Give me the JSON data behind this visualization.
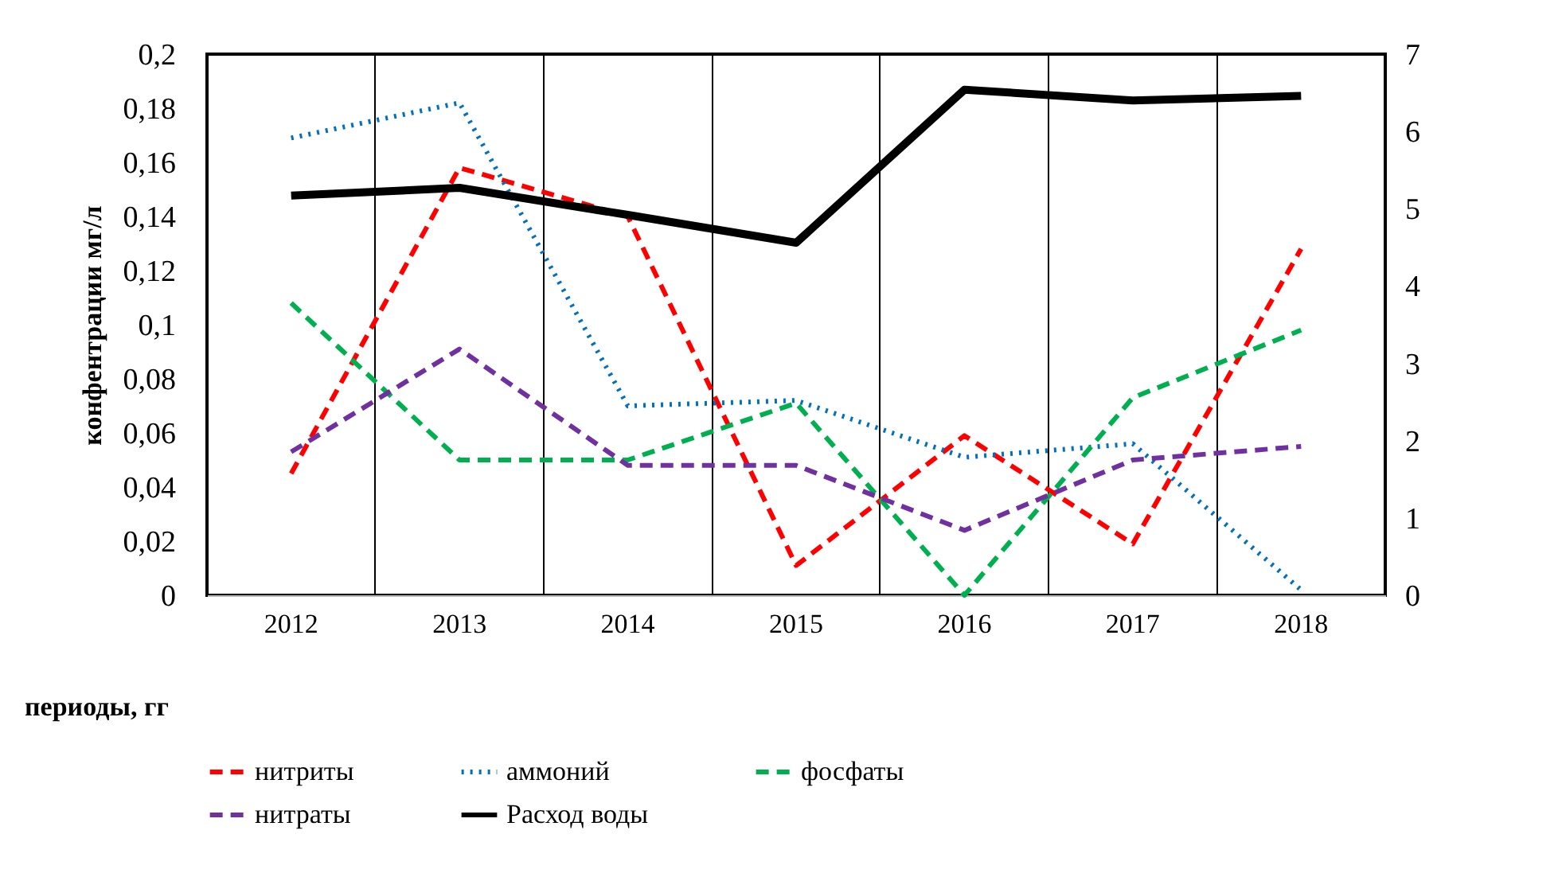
{
  "chart_data": {
    "type": "line",
    "xlabel": "периоды, гг",
    "ylabel": "конфентрации мг/л",
    "categories": [
      "2012",
      "2013",
      "2014",
      "2015",
      "2016",
      "2017",
      "2018"
    ],
    "series": [
      {
        "name": "нитриты",
        "color": "#ff0000",
        "line_style": "dashed",
        "values": [
          0.045,
          0.158,
          0.14,
          0.011,
          0.059,
          0.019,
          0.128
        ]
      },
      {
        "name": "аммоний",
        "color": "#0070c0",
        "line_style": "dotted",
        "values": [
          0.169,
          0.182,
          0.07,
          0.072,
          0.051,
          0.056,
          0.002
        ]
      },
      {
        "name": "фосфаты",
        "color": "#00b050",
        "line_style": "dashed",
        "values": [
          0.108,
          0.05,
          0.05,
          0.071,
          0.0,
          0.073,
          0.098
        ]
      },
      {
        "name": "нитраты",
        "color": "#7030a0",
        "line_style": "dashed",
        "values": [
          0.053,
          0.091,
          0.048,
          0.048,
          0.024,
          0.05,
          0.055
        ]
      },
      {
        "name": "Расход воды",
        "color": "#000000",
        "line_style": "solid",
        "axis": "y2",
        "values": [
          5.17,
          5.27,
          4.92,
          4.56,
          6.54,
          6.4,
          6.46
        ]
      }
    ],
    "ylim": [
      0,
      0.2
    ],
    "yticks": [
      {
        "value": 0,
        "label": "0"
      },
      {
        "value": 0.02,
        "label": "0,02"
      },
      {
        "value": 0.04,
        "label": "0,04"
      },
      {
        "value": 0.06,
        "label": "0,06"
      },
      {
        "value": 0.08,
        "label": "0,08"
      },
      {
        "value": 0.1,
        "label": "0,1"
      },
      {
        "value": 0.12,
        "label": "0,12"
      },
      {
        "value": 0.14,
        "label": "0,14"
      },
      {
        "value": 0.16,
        "label": "0,16"
      },
      {
        "value": 0.18,
        "label": "0,18"
      },
      {
        "value": 0.2,
        "label": "0,2"
      }
    ],
    "y2lim": [
      0,
      7
    ],
    "y2ticks": [
      0,
      1,
      2,
      3,
      4,
      5,
      6,
      7
    ],
    "grid": "x",
    "legend": "bottom"
  }
}
